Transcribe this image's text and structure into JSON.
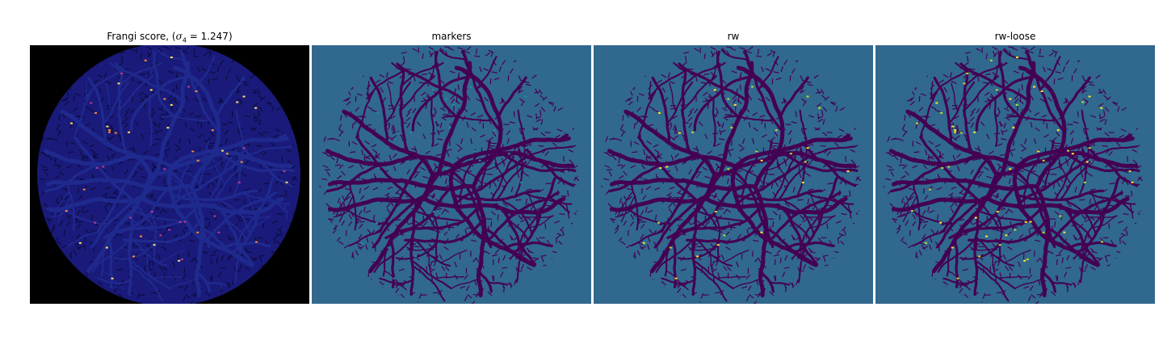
{
  "figure": {
    "panels": [
      {
        "title_prefix": "Frangi score, (",
        "title_math": "σ",
        "title_subscript": "4",
        "title_suffix": " = 1.247)",
        "image_name": "frangi-score-image",
        "background": "#000000",
        "disk_color": "#1a1a7a",
        "mesh_color": "#0c0c40",
        "vessel_color": "#1f2a8e",
        "highlight_colors": [
          "#c03a8a",
          "#ff8a3c",
          "#ffe066"
        ]
      },
      {
        "title": "markers",
        "image_name": "markers-image",
        "background": "#31688e",
        "disk_color": "#31688e",
        "mesh_color": "#440154",
        "vessel_color": "#440154",
        "highlight_colors": [
          "#21918c"
        ]
      },
      {
        "title": "rw",
        "image_name": "rw-image",
        "background": "#31688e",
        "disk_color": "#31688e",
        "mesh_color": "#440154",
        "vessel_color": "#440154",
        "highlight_colors": [
          "#b5de2b",
          "#fde725"
        ]
      },
      {
        "title": "rw-loose",
        "image_name": "rw-loose-image",
        "background": "#31688e",
        "disk_color": "#31688e",
        "mesh_color": "#440154",
        "vessel_color": "#440154",
        "highlight_colors": [
          "#fde725",
          "#b5de2b"
        ]
      }
    ]
  }
}
